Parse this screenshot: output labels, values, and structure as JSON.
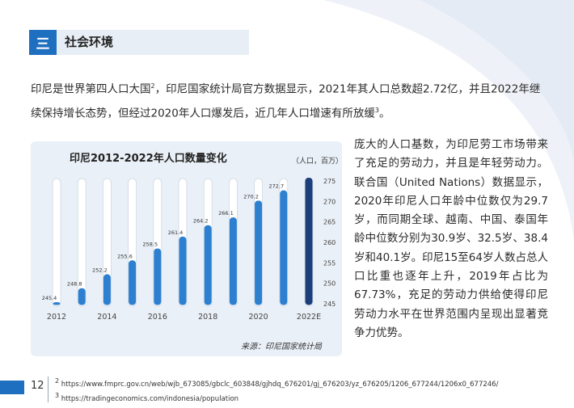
{
  "section": {
    "number": "三",
    "title": "社会环境"
  },
  "intro": {
    "part1": "印尼是世界第四人口大国",
    "sup1": "2",
    "part2": "，印尼国家统计局官方数据显示，2021年其人口总数超2.72亿，并且2022年继续保持增长态势，但经过2020年人口爆发后，近几年人口增速有所放缓",
    "sup2": "3",
    "part3": "。"
  },
  "side_text": "庞大的人口基数，为印尼劳工市场带来了充足的劳动力，并且是年轻劳动力。联合国（United Nations）数据显示，2020年印尼人口年龄中位数仅为29.7岁，而同期全球、越南、中国、泰国年龄中位数分别为30.9岁、32.5岁、38.4岁和40.1岁。印尼15至64岁人数占总人口比重也逐年上升，2019年占比为67.73%，充足的劳动力供给使得印尼劳动力水平在世界范围内呈现出显著竞争力优势。",
  "chart_data": {
    "type": "bar",
    "title": "印尼2012-2022年人口数量变化",
    "unit": "（人口，百万）",
    "categories": [
      "2012",
      "2013",
      "2014",
      "2015",
      "2016",
      "2017",
      "2018",
      "2019",
      "2020",
      "2021",
      "2022E"
    ],
    "x_tick_labels": [
      "2012",
      "",
      "2014",
      "",
      "2016",
      "",
      "2018",
      "",
      "2020",
      "",
      "2022E"
    ],
    "values": [
      245.4,
      248.8,
      252.2,
      255.6,
      258.5,
      261.4,
      264.2,
      266.1,
      270.2,
      272.7,
      275.8
    ],
    "data_labels": [
      "245.4",
      "248.8",
      "252.2",
      "255.6",
      "258.5",
      "261.4",
      "264.2",
      "266.1",
      "270.2",
      "272.7",
      ""
    ],
    "ylim": [
      245,
      275
    ],
    "y_ticks": [
      245,
      250,
      255,
      260,
      265,
      270,
      275
    ],
    "y_axis_side": "right",
    "bar_color": "#2d7fd0",
    "highlight_color": "#1a3f7a",
    "track_color": "#ffffff",
    "source": "来源：印尼国家统计局"
  },
  "page": {
    "number": "12"
  },
  "footnotes": [
    {
      "mark": "2",
      "text": "https://www.fmprc.gov.cn/web/wjb_673085/gbclc_603848/gjhdq_676201/gj_676203/yz_676205/1206_677244/1206x0_677246/"
    },
    {
      "mark": "3",
      "text": "https://tradingeconomics.com/indonesia/population"
    }
  ]
}
